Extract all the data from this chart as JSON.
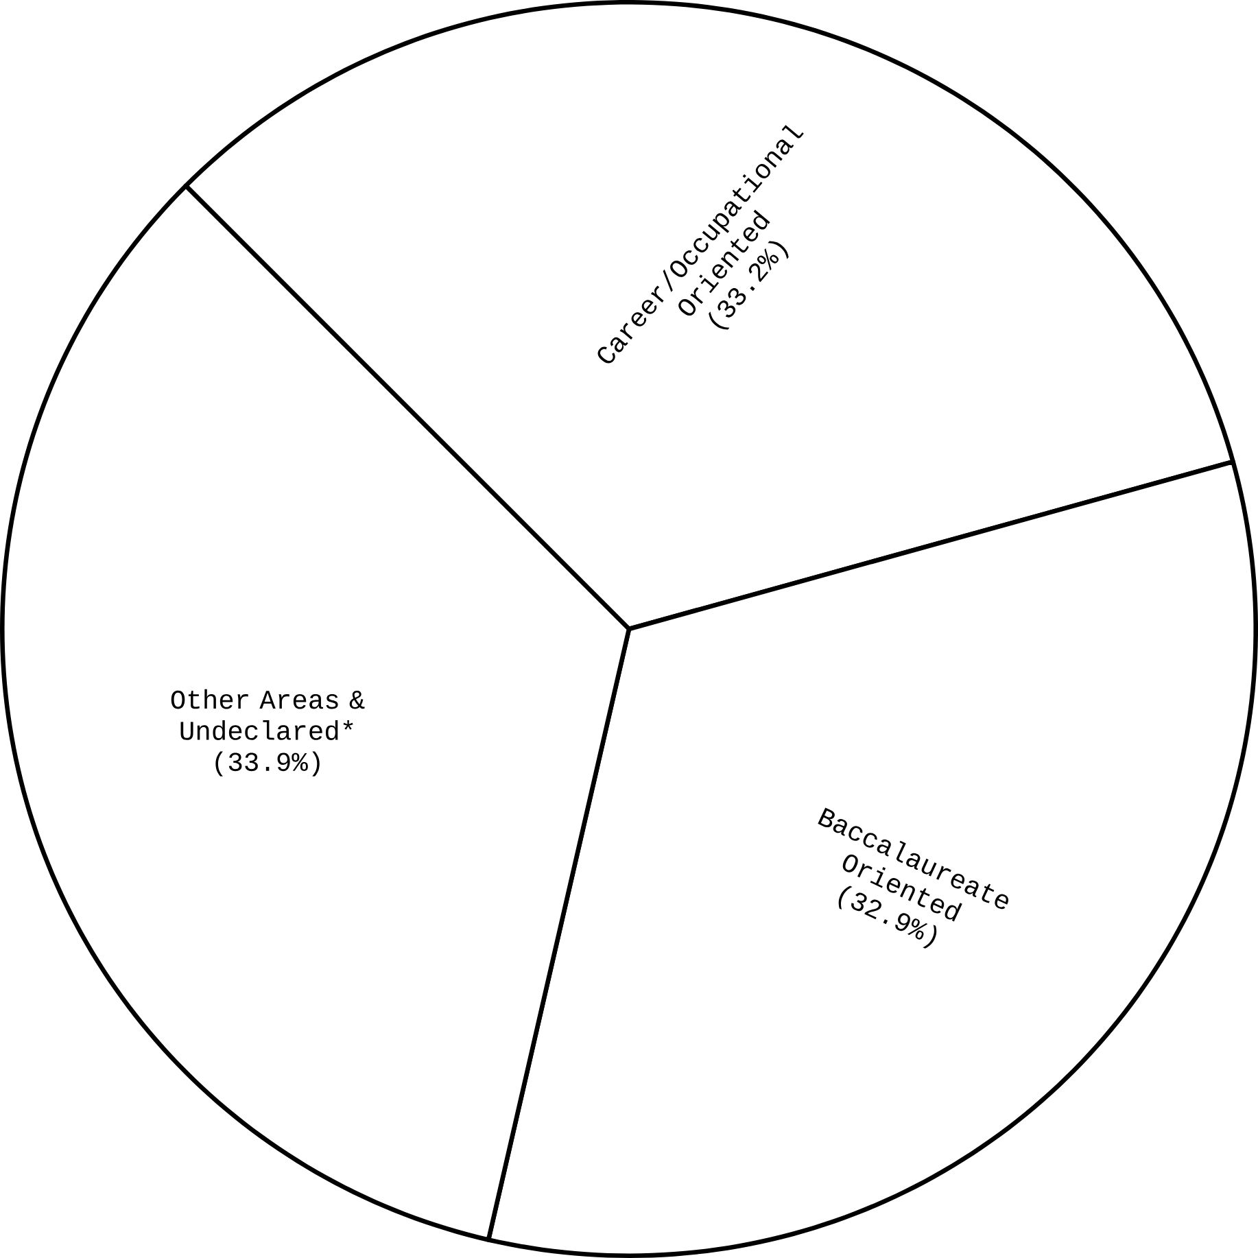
{
  "chart_data": {
    "type": "pie",
    "categories": [
      "Career/Occupational Oriented",
      "Baccalaureate Oriented",
      "Other Areas & Undeclared*"
    ],
    "values": [
      33.2,
      32.9,
      33.9
    ],
    "value_labels": [
      "(33.2%)",
      "(32.9%)",
      "(33.9%)"
    ],
    "colors": [
      "#ffffff",
      "#ffffff",
      "#ffffff"
    ]
  }
}
